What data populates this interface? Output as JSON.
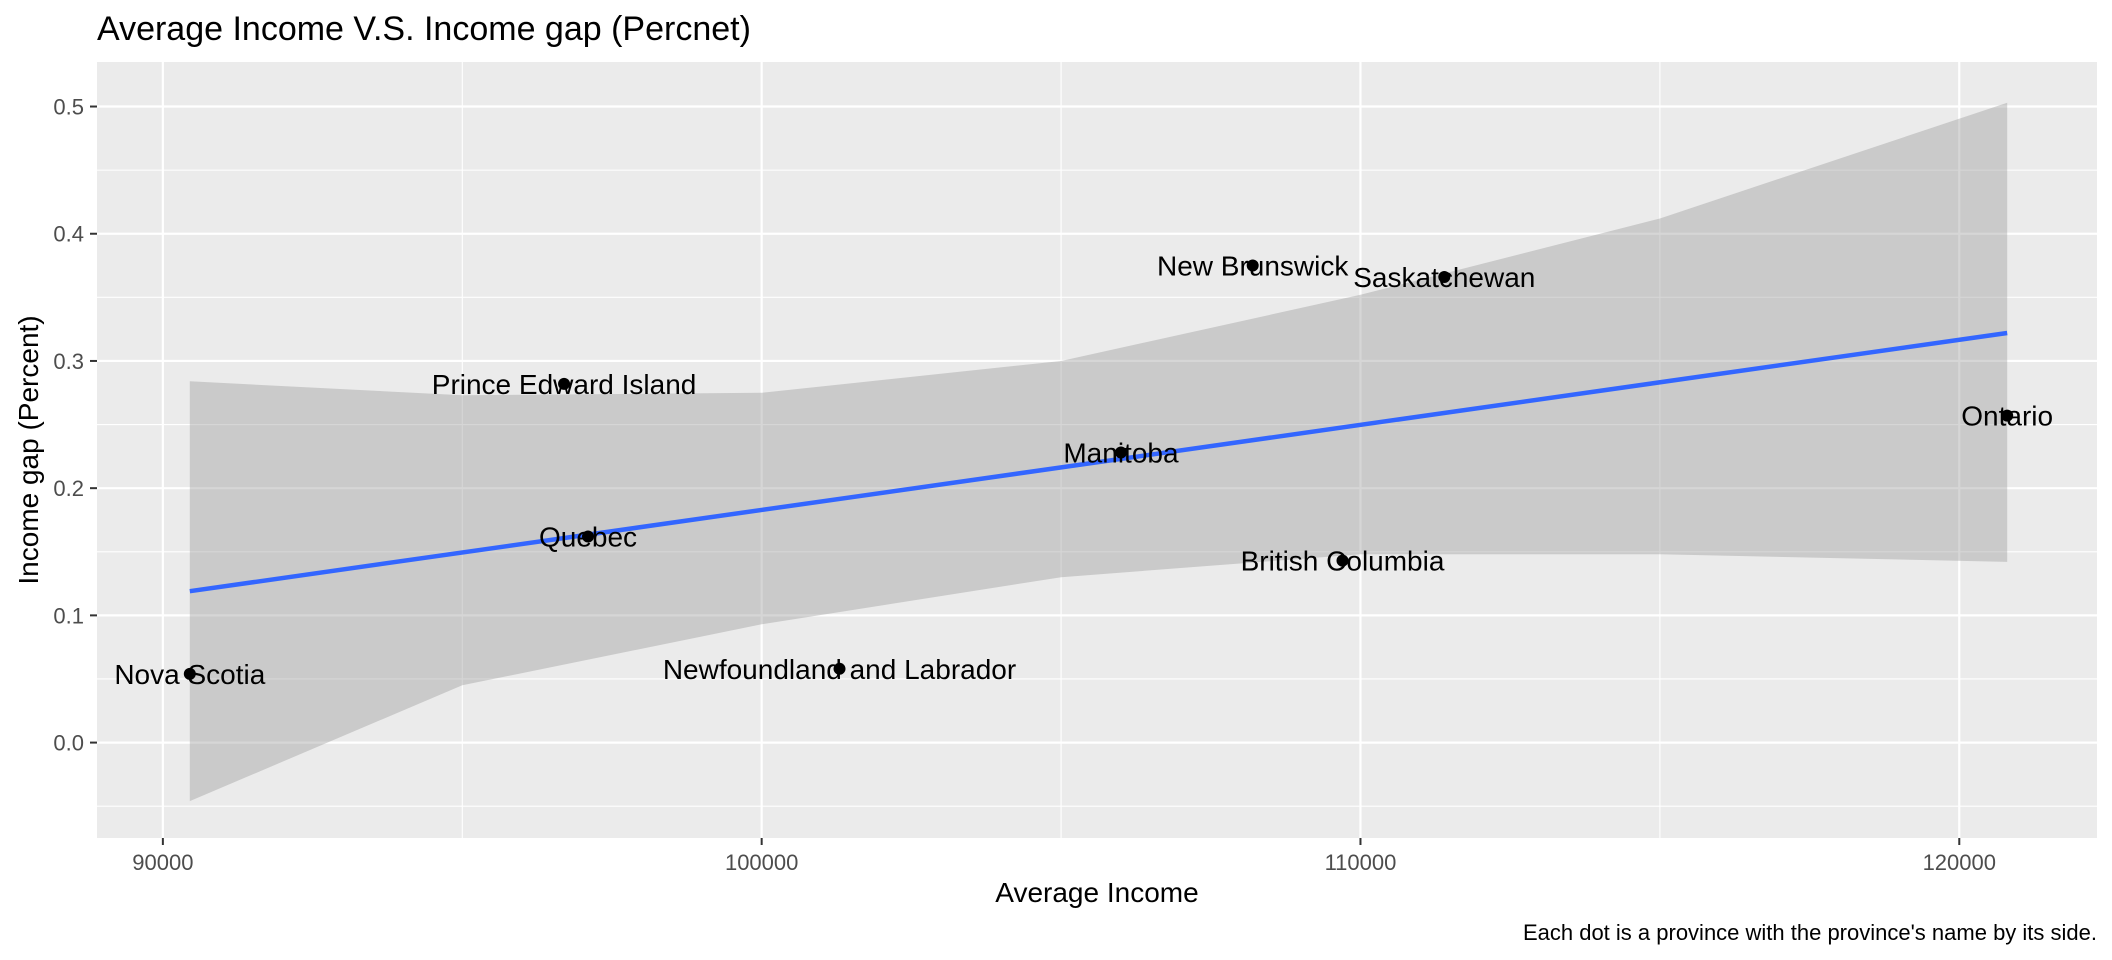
{
  "chart_data": {
    "type": "scatter",
    "title": "Average Income V.S. Income gap (Percnet)",
    "xlabel": "Average Income",
    "ylabel": "Income gap (Percent)",
    "caption": "Each dot is a province with the province's name by its side.",
    "xlim": [
      88900,
      122300
    ],
    "ylim": [
      -0.075,
      0.535
    ],
    "x_ticks": [
      90000,
      100000,
      110000,
      120000
    ],
    "x_tick_labels": [
      "90000",
      "100000",
      "110000",
      "120000"
    ],
    "y_ticks": [
      0.0,
      0.1,
      0.2,
      0.3,
      0.4,
      0.5
    ],
    "y_tick_labels": [
      "0.0",
      "0.1",
      "0.2",
      "0.3",
      "0.4",
      "0.5"
    ],
    "points": [
      {
        "name": "Nova Scotia",
        "x": 90450,
        "y": 0.054
      },
      {
        "name": "Prince Edward Island",
        "x": 96700,
        "y": 0.282
      },
      {
        "name": "Quebec",
        "x": 97100,
        "y": 0.162
      },
      {
        "name": "Newfoundland and Labrador",
        "x": 101300,
        "y": 0.058
      },
      {
        "name": "Manitoba",
        "x": 106000,
        "y": 0.228
      },
      {
        "name": "New Brunswick",
        "x": 108200,
        "y": 0.375
      },
      {
        "name": "British Columbia",
        "x": 109700,
        "y": 0.143
      },
      {
        "name": "Saskatchewan",
        "x": 111400,
        "y": 0.366
      },
      {
        "name": "Ontario",
        "x": 120800,
        "y": 0.257
      }
    ],
    "trend_line": {
      "method": "linear",
      "color": "#3366FF",
      "x": [
        90450,
        120800
      ],
      "y": [
        0.119,
        0.322
      ]
    },
    "confidence_band": {
      "color": "#999999",
      "x": [
        90450,
        95000,
        100000,
        105000,
        110000,
        115000,
        120800
      ],
      "lower": [
        -0.046,
        0.045,
        0.093,
        0.13,
        0.148,
        0.148,
        0.142
      ],
      "upper": [
        0.284,
        0.273,
        0.275,
        0.3,
        0.352,
        0.412,
        0.503
      ]
    },
    "colors": {
      "panel_background": "#EBEBEB",
      "grid": "#FFFFFF",
      "point": "#000000"
    }
  }
}
